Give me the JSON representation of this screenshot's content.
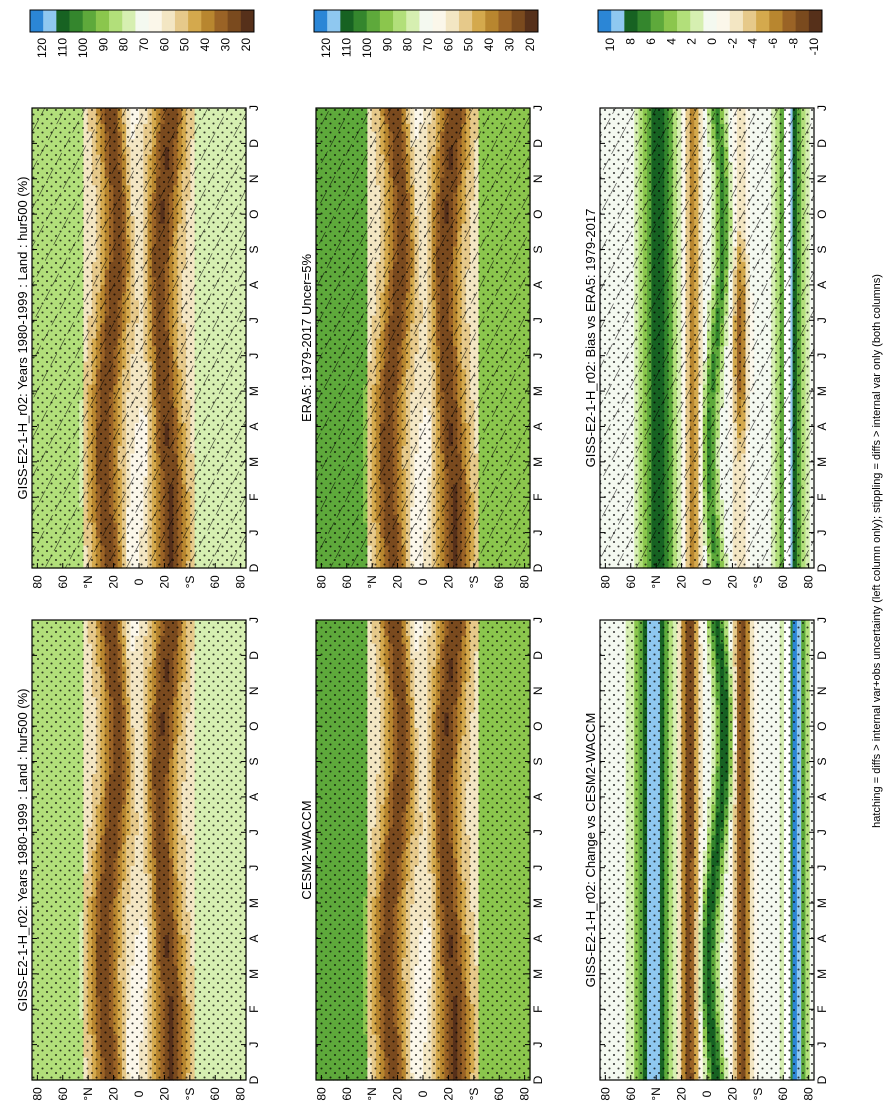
{
  "figure": {
    "footnote": "hatching = diffs > internal var+obs uncertainty (left column only); stippling = diffs > internal var only (both columns)",
    "colors": {
      "abs": [
        "#ffffff",
        "#56301a",
        "#7a4a1e",
        "#9a6326",
        "#b8862f",
        "#d4a94d",
        "#e6c98a",
        "#f3e6c3",
        "#fbf7ea",
        "#f4f9f0",
        "#d6efb1",
        "#b2df7a",
        "#8bc64d",
        "#5ea93b",
        "#34862d",
        "#176222",
        "#8fc8f0",
        "#2b86d6"
      ],
      "diff": [
        "#ffffff",
        "#56301a",
        "#7a4a1e",
        "#9a6326",
        "#b8862f",
        "#d4a94d",
        "#e6c98a",
        "#f3e6c3",
        "#fbf7ea",
        "#f4f9f0",
        "#d6efb1",
        "#b2df7a",
        "#8bc64d",
        "#5ea93b",
        "#34862d",
        "#176222",
        "#8fc8f0",
        "#2b86d6"
      ]
    }
  },
  "chart_data": [
    {
      "type": "heatmap",
      "title": "GISS-E2-1-H_r02: Years 1980-1999 : Land : hur500 (%)",
      "x_ticks": [
        "D",
        "J",
        "F",
        "M",
        "A",
        "M",
        "J",
        "J",
        "A",
        "S",
        "O",
        "N",
        "D",
        "J"
      ],
      "y_ticks": [
        "80",
        "60",
        "°N",
        "20",
        "0",
        "20",
        "°S",
        "60",
        "80"
      ],
      "colorbar_labels": [
        "120",
        "110",
        "100",
        "90",
        "80",
        "70",
        "60",
        "50",
        "40",
        "30",
        "20"
      ],
      "hatching": true,
      "stippling": true,
      "field": "model",
      "legend_position": "right"
    },
    {
      "type": "heatmap",
      "title": "GISS-E2-1-H_r02: Years 1980-1999 : Land : hur500 (%)",
      "x_ticks": [
        "D",
        "J",
        "F",
        "M",
        "A",
        "M",
        "J",
        "J",
        "A",
        "S",
        "O",
        "N",
        "D",
        "J"
      ],
      "y_ticks": [
        "80",
        "60",
        "°N",
        "20",
        "0",
        "20",
        "°S",
        "60",
        "80"
      ],
      "colorbar_labels": [
        "120",
        "110",
        "100",
        "90",
        "80",
        "70",
        "60",
        "50",
        "40",
        "30",
        "20"
      ],
      "hatching": false,
      "stippling": true,
      "field": "model",
      "legend_position": "right"
    },
    {
      "type": "heatmap",
      "title": "ERA5: 1979-2017 Uncer=5%",
      "x_ticks": [
        "D",
        "J",
        "F",
        "M",
        "A",
        "M",
        "J",
        "J",
        "A",
        "S",
        "O",
        "N",
        "D",
        "J"
      ],
      "y_ticks": [
        "80",
        "60",
        "°N",
        "20",
        "0",
        "20",
        "°S",
        "60",
        "80"
      ],
      "colorbar_labels": [
        "120",
        "110",
        "100",
        "90",
        "80",
        "70",
        "60",
        "50",
        "40",
        "30",
        "20"
      ],
      "hatching": true,
      "stippling": true,
      "field": "obs",
      "legend_position": "right"
    },
    {
      "type": "heatmap",
      "title": "CESM2-WACCM",
      "x_ticks": [
        "D",
        "J",
        "F",
        "M",
        "A",
        "M",
        "J",
        "J",
        "A",
        "S",
        "O",
        "N",
        "D",
        "J"
      ],
      "y_ticks": [
        "80",
        "60",
        "°N",
        "20",
        "0",
        "20",
        "°S",
        "60",
        "80"
      ],
      "colorbar_labels": [
        "120",
        "110",
        "100",
        "90",
        "80",
        "70",
        "60",
        "50",
        "40",
        "30",
        "20"
      ],
      "hatching": false,
      "stippling": true,
      "field": "obs",
      "legend_position": "right"
    },
    {
      "type": "heatmap",
      "title": "GISS-E2-1-H_r02: Bias vs ERA5: 1979-2017",
      "x_ticks": [
        "D",
        "J",
        "F",
        "M",
        "A",
        "M",
        "J",
        "J",
        "A",
        "S",
        "O",
        "N",
        "D",
        "J"
      ],
      "y_ticks": [
        "80",
        "60",
        "°N",
        "20",
        "0",
        "20",
        "°S",
        "60",
        "80"
      ],
      "colorbar_labels": [
        "10",
        "8",
        "6",
        "4",
        "2",
        "0",
        "-2",
        "-4",
        "-6",
        "-8",
        "-10"
      ],
      "hatching": true,
      "stippling": true,
      "field": "diff",
      "legend_position": "right"
    },
    {
      "type": "heatmap",
      "title": "GISS-E2-1-H_r02: Change vs CESM2-WACCM",
      "x_ticks": [
        "D",
        "J",
        "F",
        "M",
        "A",
        "M",
        "J",
        "J",
        "A",
        "S",
        "O",
        "N",
        "D",
        "J"
      ],
      "y_ticks": [
        "80",
        "60",
        "°N",
        "20",
        "0",
        "20",
        "°S",
        "60",
        "80"
      ],
      "colorbar_labels": [
        "10",
        "8",
        "6",
        "4",
        "2",
        "0",
        "-2",
        "-4",
        "-6",
        "-8",
        "-10"
      ],
      "hatching": false,
      "stippling": true,
      "field": "diff2",
      "legend_position": "right"
    }
  ]
}
